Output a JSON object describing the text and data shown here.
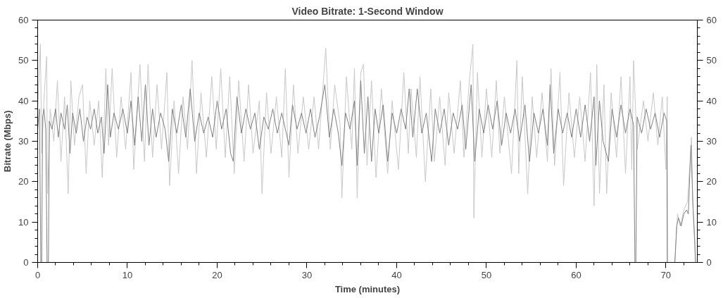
{
  "chart_data": {
    "type": "line",
    "title": "Video Bitrate: 1-Second Window",
    "xlabel": "Time (minutes)",
    "ylabel": "Bitrate (Mbps)",
    "xlim": [
      0,
      73.5
    ],
    "ylim": [
      0,
      60
    ],
    "y2lim": [
      0,
      60
    ],
    "xticks": [
      0,
      {
        "value": 2,
        "label": null
      },
      {
        "value": 4,
        "label": null
      },
      {
        "value": 6,
        "label": null
      },
      {
        "value": 8,
        "label": null
      },
      10,
      {
        "value": 12,
        "label": null
      },
      {
        "value": 14,
        "label": null
      },
      {
        "value": 16,
        "label": null
      },
      {
        "value": 18,
        "label": null
      },
      20,
      {
        "value": 22,
        "label": null
      },
      {
        "value": 24,
        "label": null
      },
      {
        "value": 26,
        "label": null
      },
      {
        "value": 28,
        "label": null
      },
      30,
      {
        "value": 32,
        "label": null
      },
      {
        "value": 34,
        "label": null
      },
      {
        "value": 36,
        "label": null
      },
      {
        "value": 38,
        "label": null
      },
      40,
      {
        "value": 42,
        "label": null
      },
      {
        "value": 44,
        "label": null
      },
      {
        "value": 46,
        "label": null
      },
      {
        "value": 48,
        "label": null
      },
      50,
      {
        "value": 52,
        "label": null
      },
      {
        "value": 54,
        "label": null
      },
      {
        "value": 56,
        "label": null
      },
      {
        "value": 58,
        "label": null
      },
      60,
      {
        "value": 62,
        "label": null
      },
      {
        "value": 64,
        "label": null
      },
      {
        "value": 66,
        "label": null
      },
      {
        "value": 68,
        "label": null
      },
      70,
      {
        "value": 72,
        "label": null
      }
    ],
    "yticks": [
      0,
      {
        "value": 2,
        "label": null
      },
      {
        "value": 4,
        "label": null
      },
      {
        "value": 6,
        "label": null
      },
      {
        "value": 8,
        "label": null
      },
      10,
      {
        "value": 12,
        "label": null
      },
      {
        "value": 14,
        "label": null
      },
      {
        "value": 16,
        "label": null
      },
      {
        "value": 18,
        "label": null
      },
      20,
      {
        "value": 22,
        "label": null
      },
      {
        "value": 24,
        "label": null
      },
      {
        "value": 26,
        "label": null
      },
      {
        "value": 28,
        "label": null
      },
      30,
      {
        "value": 32,
        "label": null
      },
      {
        "value": 34,
        "label": null
      },
      {
        "value": 36,
        "label": null
      },
      {
        "value": 38,
        "label": null
      },
      40,
      {
        "value": 42,
        "label": null
      },
      {
        "value": 44,
        "label": null
      },
      {
        "value": 46,
        "label": null
      },
      {
        "value": 48,
        "label": null
      },
      50,
      {
        "value": 52,
        "label": null
      },
      {
        "value": 54,
        "label": null
      },
      {
        "value": 56,
        "label": null
      },
      {
        "value": 58,
        "label": null
      },
      60
    ],
    "y2ticks": [
      0,
      {
        "value": 2,
        "label": null
      },
      {
        "value": 4,
        "label": null
      },
      {
        "value": 6,
        "label": null
      },
      {
        "value": 8,
        "label": null
      },
      10,
      {
        "value": 12,
        "label": null
      },
      {
        "value": 14,
        "label": null
      },
      {
        "value": 16,
        "label": null
      },
      {
        "value": 18,
        "label": null
      },
      20,
      {
        "value": 22,
        "label": null
      },
      {
        "value": 24,
        "label": null
      },
      {
        "value": 26,
        "label": null
      },
      {
        "value": 28,
        "label": null
      },
      30,
      {
        "value": 32,
        "label": null
      },
      {
        "value": 34,
        "label": null
      },
      {
        "value": 36,
        "label": null
      },
      {
        "value": 38,
        "label": null
      },
      40,
      {
        "value": 42,
        "label": null
      },
      {
        "value": 44,
        "label": null
      },
      {
        "value": 46,
        "label": null
      },
      {
        "value": 48,
        "label": null
      },
      50,
      {
        "value": 52,
        "label": null
      },
      {
        "value": 54,
        "label": null
      },
      {
        "value": 56,
        "label": null
      },
      {
        "value": 58,
        "label": null
      },
      60
    ],
    "grid": false,
    "marker": "none",
    "line_style": "solid",
    "series": [
      {
        "color": "#c8c8c8",
        "x": [
          0,
          0.3,
          0.45,
          0.7,
          1,
          1.1,
          1.4,
          1.8,
          2.2,
          2.6,
          3,
          3.4,
          3.7,
          4.1,
          4.6,
          5,
          5.4,
          5.8,
          6.3,
          6.8,
          7.2,
          7.6,
          7.9,
          8.3,
          8.8,
          9.3,
          9.8,
          10.4,
          10.7,
          11.4,
          11.9,
          12.3,
          12.8,
          13.3,
          13.8,
          14.4,
          14.7,
          15.2,
          15.7,
          16.2,
          16.7,
          17.2,
          17.7,
          18.2,
          18.8,
          19.4,
          19.9,
          20.4,
          20.9,
          21.4,
          21.9,
          22.4,
          23,
          23.5,
          24,
          24.7,
          25,
          25.5,
          26,
          26.6,
          27.2,
          27.6,
          28,
          28.5,
          29,
          29.6,
          30.2,
          30.8,
          31.3,
          32.1,
          32.6,
          33.1,
          33.7,
          33.9,
          34.4,
          35,
          35.3,
          35.6,
          36,
          36.3,
          36.7,
          37.2,
          37.7,
          38.3,
          39,
          39.5,
          40.2,
          40.8,
          41.3,
          41.6,
          42.2,
          42.6,
          43.2,
          43.8,
          44.2,
          44.8,
          45.4,
          45.8,
          46.4,
          47.1,
          47.5,
          48.1,
          48.5,
          48.6,
          49,
          49.5,
          50,
          50.6,
          51.1,
          51.5,
          52,
          52.8,
          53.4,
          53.6,
          54,
          54.6,
          55.1,
          55.6,
          56.2,
          56.8,
          57.2,
          57.6,
          58.2,
          58.6,
          59.2,
          59.8,
          60.4,
          61,
          61.6,
          62,
          62.3,
          62.6,
          63.1,
          63.4,
          63.9,
          64.5,
          65,
          65.5,
          66,
          66.2,
          66.4,
          66.8,
          67.5,
          68,
          68.6,
          69.1,
          69.6,
          70,
          70.15,
          70.2,
          71,
          71.3,
          71.6,
          72,
          72.4,
          72.7,
          72.85,
          73,
          73.2,
          73.3
        ],
        "values": [
          38,
          54,
          27,
          40,
          51,
          17,
          38,
          30,
          45,
          25,
          41,
          17,
          45,
          29,
          41,
          44,
          22,
          40,
          29,
          40,
          21,
          48,
          29,
          48,
          26,
          41,
          28,
          47,
          23,
          49,
          25,
          49,
          26,
          44,
          28,
          47,
          19,
          40,
          22,
          41,
          28,
          50,
          22,
          42,
          26,
          46,
          28,
          48,
          26,
          46,
          22,
          45,
          25,
          44,
          27,
          40,
          17,
          42,
          27,
          41,
          26,
          48,
          21,
          44,
          27,
          41,
          28,
          41,
          28,
          53,
          28,
          44,
          34,
          16,
          46,
          28,
          48,
          16,
          47,
          49,
          24,
          45,
          21,
          43,
          22,
          40,
          23,
          47,
          27,
          43,
          26,
          46,
          20,
          43,
          25,
          41,
          24,
          42,
          27,
          45,
          26,
          45,
          54,
          11,
          47,
          26,
          43,
          26,
          45,
          27,
          41,
          22,
          50,
          22,
          46,
          17,
          41,
          26,
          42,
          25,
          48,
          24,
          47,
          19,
          42,
          26,
          41,
          25,
          47,
          14,
          49,
          17,
          44,
          17,
          42,
          26,
          46,
          22,
          46,
          23,
          50,
          28,
          40,
          30,
          42,
          29,
          41,
          23,
          41,
          0,
          0,
          12,
          9,
          13,
          15,
          25,
          31,
          14,
          5,
          0
        ]
      },
      {
        "color": "#808080",
        "x": [
          0,
          0.2,
          0.35,
          0.45,
          0.55,
          0.7,
          0.9,
          1.05,
          1.2,
          1.3,
          1.6,
          2,
          2.3,
          2.6,
          3,
          3.3,
          3.6,
          3.9,
          4.3,
          4.7,
          5.1,
          5.5,
          5.9,
          6.3,
          6.7,
          7.1,
          7.4,
          7.8,
          8.1,
          8.5,
          9,
          9.5,
          10,
          10.4,
          10.8,
          11.2,
          11.6,
          12,
          12.4,
          12.8,
          13.2,
          13.7,
          14.2,
          14.6,
          15,
          15.5,
          16,
          16.5,
          17,
          17.5,
          18,
          18.5,
          19,
          19.5,
          20,
          20.5,
          21,
          21.5,
          21.8,
          22.2,
          22.7,
          23.2,
          23.7,
          24.2,
          24.7,
          25.2,
          25.7,
          26.2,
          26.7,
          27.2,
          27.7,
          28,
          28.4,
          28.9,
          29.4,
          29.9,
          30.4,
          30.9,
          31.4,
          32,
          32.5,
          33,
          33.5,
          33.9,
          34.3,
          34.8,
          35.3,
          35.6,
          36,
          36.4,
          36.8,
          37.2,
          37.6,
          38,
          38.5,
          39,
          39.5,
          40,
          40.5,
          41,
          41.4,
          41.8,
          42.3,
          42.8,
          43.3,
          43.9,
          44.3,
          44.8,
          45.3,
          45.8,
          46.3,
          46.8,
          47.3,
          47.7,
          48.3,
          48.7,
          49.2,
          49.7,
          50.2,
          50.7,
          51.2,
          51.7,
          52.2,
          52.7,
          53.2,
          53.7,
          54.3,
          54.8,
          55.3,
          55.8,
          56.3,
          56.8,
          57.1,
          57.5,
          58,
          58.5,
          59,
          59.5,
          60,
          60.5,
          61,
          61.5,
          62,
          62.2,
          62.6,
          63,
          63.6,
          64,
          64.5,
          65,
          65.5,
          66,
          66.4,
          66.55,
          66.65,
          66.8,
          67.3,
          67.8,
          68.3,
          68.8,
          69.3,
          69.8,
          70.1,
          70.15,
          71,
          71.2,
          71.4,
          71.7,
          72,
          72.3,
          72.5,
          72.7,
          72.8,
          73,
          73.2,
          73.3
        ],
        "values": [
          33,
          38,
          0,
          0,
          36,
          38,
          33,
          0,
          0,
          35,
          33,
          38,
          31,
          37,
          33,
          39,
          27,
          37,
          32,
          38,
          30,
          36,
          33,
          38,
          32,
          36,
          27,
          44,
          31,
          37,
          33,
          38,
          32,
          40,
          29,
          41,
          30,
          44,
          29,
          38,
          31,
          37,
          33,
          25,
          38,
          32,
          39,
          31,
          43,
          30,
          37,
          32,
          36,
          31,
          40,
          33,
          38,
          27,
          25,
          41,
          32,
          38,
          33,
          37,
          28,
          36,
          33,
          38,
          32,
          37,
          32,
          29,
          39,
          33,
          37,
          32,
          38,
          31,
          36,
          44,
          31,
          38,
          32,
          24,
          37,
          33,
          40,
          24,
          45,
          27,
          41,
          25,
          38,
          32,
          39,
          25,
          37,
          32,
          38,
          33,
          43,
          31,
          43,
          32,
          37,
          25,
          38,
          32,
          38,
          29,
          37,
          33,
          39,
          28,
          44,
          25,
          38,
          32,
          39,
          33,
          40,
          29,
          37,
          32,
          38,
          30,
          39,
          25,
          37,
          32,
          38,
          29,
          44,
          27,
          38,
          32,
          37,
          31,
          38,
          31,
          39,
          30,
          41,
          24,
          40,
          30,
          25,
          38,
          31,
          39,
          32,
          38,
          34,
          0,
          0,
          36,
          32,
          38,
          33,
          37,
          31,
          37,
          35,
          0,
          0,
          9,
          11,
          9,
          12,
          13,
          12,
          24,
          29,
          15,
          6,
          0
        ]
      }
    ]
  }
}
